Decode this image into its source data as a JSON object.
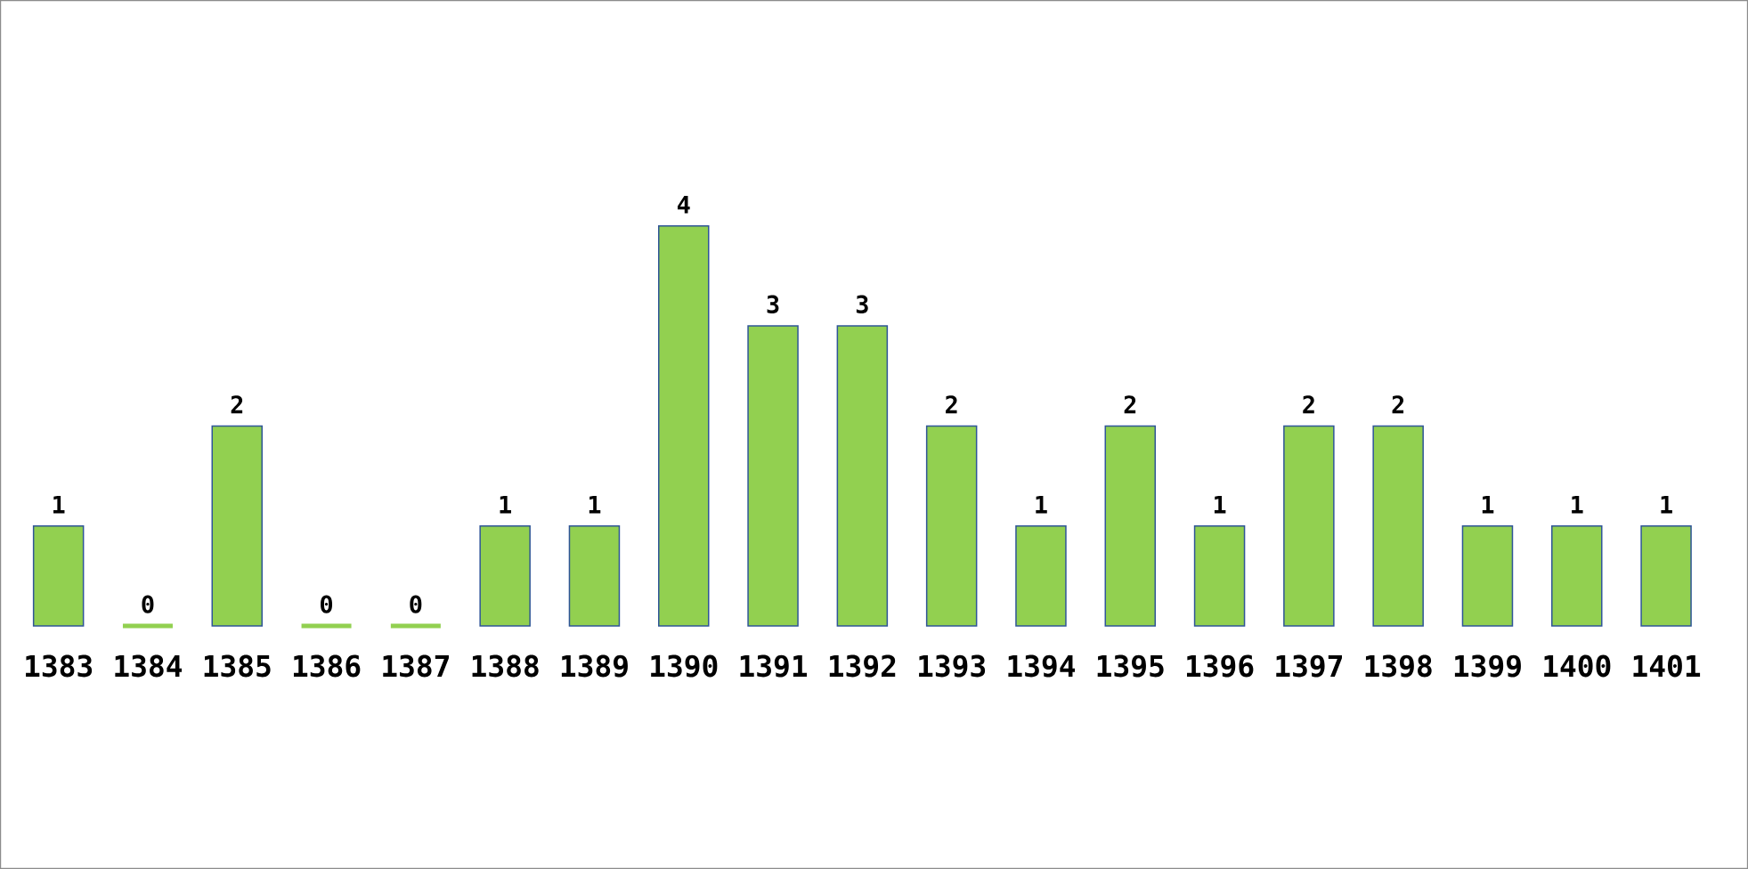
{
  "chart_data": {
    "type": "bar",
    "categories": [
      "1383",
      "1384",
      "1385",
      "1386",
      "1387",
      "1388",
      "1389",
      "1390",
      "1391",
      "1392",
      "1393",
      "1394",
      "1395",
      "1396",
      "1397",
      "1398",
      "1399",
      "1400",
      "1401"
    ],
    "values": [
      1,
      0,
      2,
      0,
      0,
      1,
      1,
      4,
      3,
      3,
      2,
      1,
      2,
      1,
      2,
      2,
      1,
      1,
      1
    ],
    "color": "#92d050",
    "data_labels": true
  }
}
